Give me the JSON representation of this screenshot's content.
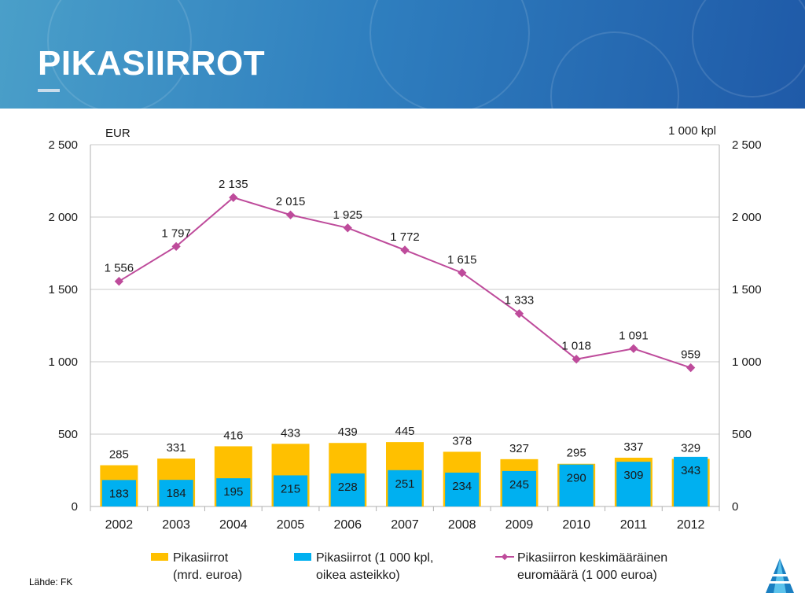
{
  "header": {
    "title": "PIKASIIRROT"
  },
  "footer": {
    "source": "Lähde: FK"
  },
  "logo": {
    "icon": "organization-logo-icon"
  },
  "colors": {
    "bar_total": "#FFC000",
    "bar_count": "#00B0F0",
    "line": "#BE4B9B",
    "header_start": "#4a9fc9",
    "header_end": "#1f5aa8"
  },
  "chart_data": {
    "type": "bar",
    "left_axis_unit": "EUR",
    "right_axis_unit": "1 000 kpl",
    "categories": [
      "2002",
      "2003",
      "2004",
      "2005",
      "2006",
      "2007",
      "2008",
      "2009",
      "2010",
      "2011",
      "2012"
    ],
    "ylim": [
      0,
      2500
    ],
    "y_ticks": [
      0,
      500,
      1000,
      1500,
      2000,
      2500
    ],
    "y_tick_labels": [
      "0",
      "500",
      "1 000",
      "1 500",
      "2 000",
      "2 500"
    ],
    "grid": true,
    "legend_position": "bottom",
    "series": [
      {
        "name": "Pikasiirrot (mrd. euroa)",
        "legend_line1": "Pikasiirrot",
        "legend_line2": "(mrd. euroa)",
        "type": "bar",
        "axis": "left",
        "values": [
          285,
          331,
          416,
          433,
          439,
          445,
          378,
          327,
          295,
          337,
          329
        ],
        "labels": [
          "285",
          "331",
          "416",
          "433",
          "439",
          "445",
          "378",
          "327",
          "295",
          "337",
          "329"
        ]
      },
      {
        "name": "Pikasiirrot (1 000 kpl, oikea asteikko)",
        "legend_line1": "Pikasiirrot (1 000 kpl,",
        "legend_line2": "oikea asteikko)",
        "type": "bar",
        "axis": "right",
        "values": [
          183,
          184,
          195,
          215,
          228,
          251,
          234,
          245,
          290,
          309,
          343
        ],
        "labels": [
          "183",
          "184",
          "195",
          "215",
          "228",
          "251",
          "234",
          "245",
          "290",
          "309",
          "343"
        ]
      },
      {
        "name": "Pikasiirron keskimääräinen euromäärä (1 000 euroa)",
        "legend_line1": "Pikasiirron keskimääräinen",
        "legend_line2": "euromäärä (1 000 euroa)",
        "type": "line",
        "axis": "left",
        "values": [
          1556,
          1797,
          2135,
          2015,
          1925,
          1772,
          1615,
          1333,
          1018,
          1091,
          959
        ],
        "labels": [
          "1 556",
          "1 797",
          "2 135",
          "2 015",
          "1 925",
          "1 772",
          "1 615",
          "1 333",
          "1 018",
          "1 091",
          "959"
        ]
      }
    ]
  }
}
